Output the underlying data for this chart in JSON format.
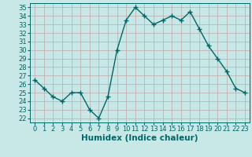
{
  "x": [
    0,
    1,
    2,
    3,
    4,
    5,
    6,
    7,
    8,
    9,
    10,
    11,
    12,
    13,
    14,
    15,
    16,
    17,
    18,
    19,
    20,
    21,
    22,
    23
  ],
  "y": [
    26.5,
    25.5,
    24.5,
    24.0,
    25.0,
    25.0,
    23.0,
    22.0,
    24.5,
    30.0,
    33.5,
    35.0,
    34.0,
    33.0,
    33.5,
    34.0,
    33.5,
    34.5,
    32.5,
    30.5,
    29.0,
    27.5,
    25.5,
    25.0
  ],
  "line_color": "#006666",
  "marker": "+",
  "marker_size": 4,
  "linewidth": 1.0,
  "xlabel": "Humidex (Indice chaleur)",
  "xlim": [
    -0.5,
    23.5
  ],
  "ylim": [
    21.5,
    35.5
  ],
  "yticks": [
    22,
    23,
    24,
    25,
    26,
    27,
    28,
    29,
    30,
    31,
    32,
    33,
    34,
    35
  ],
  "xticks": [
    0,
    1,
    2,
    3,
    4,
    5,
    6,
    7,
    8,
    9,
    10,
    11,
    12,
    13,
    14,
    15,
    16,
    17,
    18,
    19,
    20,
    21,
    22,
    23
  ],
  "bg_color": "#c8e8e8",
  "grid_color": "#c0a8a8",
  "tick_fontsize": 6,
  "xlabel_fontsize": 7.5,
  "tick_color": "#006666"
}
